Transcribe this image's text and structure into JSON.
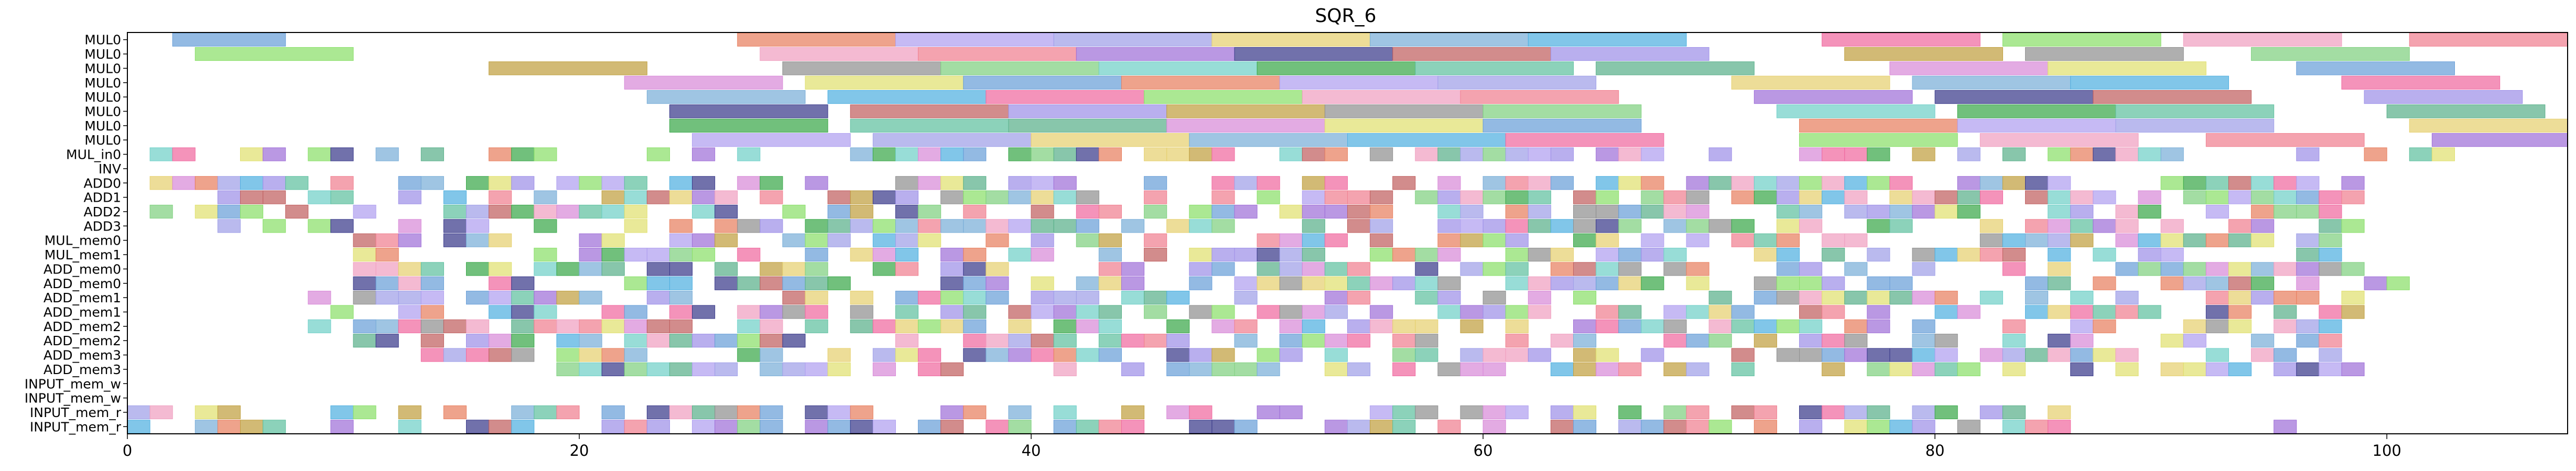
{
  "chart_data": {
    "type": "gantt",
    "title": "SQR_6",
    "xlim": [
      0,
      108
    ],
    "xticks": [
      0,
      20,
      40,
      60,
      80,
      100
    ],
    "rows": [
      "MUL0",
      "MUL0",
      "MUL0",
      "MUL0",
      "MUL0",
      "MUL0",
      "MUL0",
      "MUL0",
      "MUL_in0",
      "INV",
      "ADD0",
      "ADD1",
      "ADD2",
      "ADD3",
      "MUL_mem0",
      "MUL_mem1",
      "ADD_mem0",
      "ADD_mem0",
      "ADD_mem1",
      "ADD_mem1",
      "ADD_mem2",
      "ADD_mem2",
      "ADD_mem3",
      "ADD_mem3",
      "INPUT_mem_w",
      "INPUT_mem_w",
      "INPUT_mem_r",
      "INPUT_mem_r"
    ],
    "palette": [
      "#6a9fd8",
      "#f06aa0",
      "#9e90e8",
      "#5ab08a",
      "#e6d070",
      "#a070d8",
      "#70d0c8",
      "#e88060",
      "#8adf6a",
      "#c0a040",
      "#d88ad8",
      "#7aaed8",
      "#3a3a8a",
      "#3aa84a",
      "#b0a0f0",
      "#f0a0c0",
      "#909090",
      "#e0e070",
      "#50b0e0",
      "#c06060",
      "#60c0a0",
      "#a0a0e8",
      "#f08090",
      "#80d080"
    ],
    "long_bars": [
      {
        "row": 0,
        "start": 2,
        "end": 7
      },
      {
        "row": 0,
        "start": 27,
        "end": 34
      },
      {
        "row": 0,
        "start": 34,
        "end": 41
      },
      {
        "row": 0,
        "start": 41,
        "end": 48
      },
      {
        "row": 0,
        "start": 48,
        "end": 55
      },
      {
        "row": 0,
        "start": 55,
        "end": 62
      },
      {
        "row": 0,
        "start": 62,
        "end": 69
      },
      {
        "row": 0,
        "start": 75,
        "end": 82
      },
      {
        "row": 0,
        "start": 83,
        "end": 90
      },
      {
        "row": 0,
        "start": 91,
        "end": 98
      },
      {
        "row": 0,
        "start": 101,
        "end": 108
      },
      {
        "row": 1,
        "start": 3,
        "end": 10
      },
      {
        "row": 1,
        "start": 28,
        "end": 35
      },
      {
        "row": 1,
        "start": 35,
        "end": 42
      },
      {
        "row": 1,
        "start": 42,
        "end": 49
      },
      {
        "row": 1,
        "start": 49,
        "end": 56
      },
      {
        "row": 1,
        "start": 56,
        "end": 63
      },
      {
        "row": 1,
        "start": 63,
        "end": 70
      },
      {
        "row": 1,
        "start": 76,
        "end": 83
      },
      {
        "row": 1,
        "start": 84,
        "end": 91
      },
      {
        "row": 1,
        "start": 94,
        "end": 101
      },
      {
        "row": 2,
        "start": 16,
        "end": 23
      },
      {
        "row": 2,
        "start": 29,
        "end": 36
      },
      {
        "row": 2,
        "start": 36,
        "end": 43
      },
      {
        "row": 2,
        "start": 43,
        "end": 50
      },
      {
        "row": 2,
        "start": 50,
        "end": 57
      },
      {
        "row": 2,
        "start": 57,
        "end": 64
      },
      {
        "row": 2,
        "start": 65,
        "end": 72
      },
      {
        "row": 2,
        "start": 78,
        "end": 85
      },
      {
        "row": 2,
        "start": 85,
        "end": 92
      },
      {
        "row": 2,
        "start": 96,
        "end": 103
      },
      {
        "row": 3,
        "start": 22,
        "end": 29
      },
      {
        "row": 3,
        "start": 30,
        "end": 37
      },
      {
        "row": 3,
        "start": 37,
        "end": 44
      },
      {
        "row": 3,
        "start": 44,
        "end": 51
      },
      {
        "row": 3,
        "start": 51,
        "end": 58
      },
      {
        "row": 3,
        "start": 58,
        "end": 65
      },
      {
        "row": 3,
        "start": 71,
        "end": 78
      },
      {
        "row": 3,
        "start": 79,
        "end": 86
      },
      {
        "row": 3,
        "start": 86,
        "end": 93
      },
      {
        "row": 3,
        "start": 98,
        "end": 105
      },
      {
        "row": 4,
        "start": 23,
        "end": 30
      },
      {
        "row": 4,
        "start": 31,
        "end": 38
      },
      {
        "row": 4,
        "start": 38,
        "end": 45
      },
      {
        "row": 4,
        "start": 45,
        "end": 52
      },
      {
        "row": 4,
        "start": 52,
        "end": 59
      },
      {
        "row": 4,
        "start": 59,
        "end": 66
      },
      {
        "row": 4,
        "start": 72,
        "end": 79
      },
      {
        "row": 4,
        "start": 80,
        "end": 87
      },
      {
        "row": 4,
        "start": 87,
        "end": 94
      },
      {
        "row": 4,
        "start": 99,
        "end": 106
      },
      {
        "row": 5,
        "start": 24,
        "end": 31
      },
      {
        "row": 5,
        "start": 32,
        "end": 39
      },
      {
        "row": 5,
        "start": 39,
        "end": 46
      },
      {
        "row": 5,
        "start": 46,
        "end": 53
      },
      {
        "row": 5,
        "start": 53,
        "end": 60
      },
      {
        "row": 5,
        "start": 60,
        "end": 67
      },
      {
        "row": 5,
        "start": 73,
        "end": 80
      },
      {
        "row": 5,
        "start": 81,
        "end": 88
      },
      {
        "row": 5,
        "start": 88,
        "end": 95
      },
      {
        "row": 5,
        "start": 100,
        "end": 107
      },
      {
        "row": 6,
        "start": 24,
        "end": 31
      },
      {
        "row": 6,
        "start": 32,
        "end": 39
      },
      {
        "row": 6,
        "start": 39,
        "end": 46
      },
      {
        "row": 6,
        "start": 46,
        "end": 53
      },
      {
        "row": 6,
        "start": 53,
        "end": 60
      },
      {
        "row": 6,
        "start": 60,
        "end": 67
      },
      {
        "row": 6,
        "start": 74,
        "end": 81
      },
      {
        "row": 6,
        "start": 81,
        "end": 88
      },
      {
        "row": 6,
        "start": 88,
        "end": 95
      },
      {
        "row": 6,
        "start": 101,
        "end": 108
      },
      {
        "row": 7,
        "start": 25,
        "end": 32
      },
      {
        "row": 7,
        "start": 33,
        "end": 40
      },
      {
        "row": 7,
        "start": 40,
        "end": 47
      },
      {
        "row": 7,
        "start": 47,
        "end": 54
      },
      {
        "row": 7,
        "start": 54,
        "end": 61
      },
      {
        "row": 7,
        "start": 61,
        "end": 68
      },
      {
        "row": 7,
        "start": 74,
        "end": 81
      },
      {
        "row": 7,
        "start": 82,
        "end": 89
      },
      {
        "row": 7,
        "start": 92,
        "end": 99
      },
      {
        "row": 7,
        "start": 102,
        "end": 109
      }
    ],
    "short_task_rows": {
      "8": {
        "start": 1,
        "end": 103,
        "seed": 11
      },
      "10": {
        "start": 1,
        "end": 99,
        "seed": 21
      },
      "11": {
        "start": 4,
        "end": 99,
        "seed": 31
      },
      "12": {
        "start": 1,
        "end": 99,
        "seed": 41
      },
      "13": {
        "start": 4,
        "end": 99,
        "seed": 51
      },
      "14": {
        "start": 10,
        "end": 98,
        "seed": 61
      },
      "15": {
        "start": 10,
        "end": 98,
        "seed": 71
      },
      "16": {
        "start": 10,
        "end": 100,
        "seed": 81
      },
      "17": {
        "start": 10,
        "end": 101,
        "seed": 91
      },
      "18": {
        "start": 8,
        "end": 99,
        "seed": 101
      },
      "19": {
        "start": 9,
        "end": 99,
        "seed": 111
      },
      "20": {
        "start": 8,
        "end": 98,
        "seed": 121
      },
      "21": {
        "start": 10,
        "end": 98,
        "seed": 131
      },
      "22": {
        "start": 13,
        "end": 99,
        "seed": 141
      },
      "23": {
        "start": 19,
        "end": 99,
        "seed": 151
      },
      "26": {
        "start": 0,
        "end": 88,
        "seed": 161
      },
      "27": {
        "start": 0,
        "end": 86,
        "seed": 171
      }
    },
    "extra_short_tasks": [
      {
        "row": 27,
        "start": 95,
        "end": 96
      }
    ]
  }
}
